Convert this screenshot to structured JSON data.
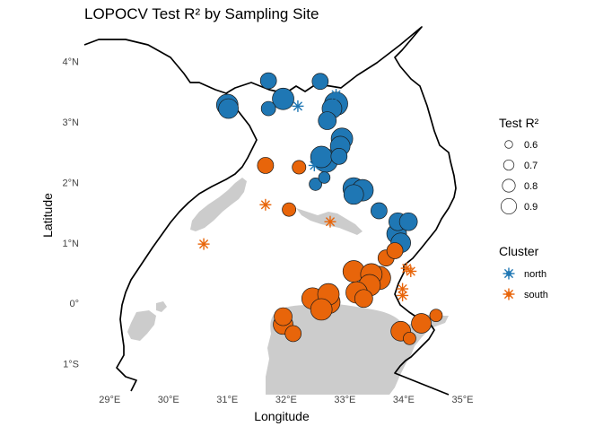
{
  "title": "LOPOCV Test R² by Sampling Site",
  "xlabel": "Longitude",
  "ylabel": "Latitude",
  "colors": {
    "north": "#1f77b4",
    "south": "#e8650a",
    "water": "#cccccc",
    "border": "#000000",
    "text": "#444444"
  },
  "chart_data": {
    "type": "scatter",
    "xlim": [
      28.6,
      35.1
    ],
    "ylim": [
      -1.45,
      4.6
    ],
    "x_ticks": [
      {
        "value": 29,
        "label": "29°E"
      },
      {
        "value": 30,
        "label": "30°E"
      },
      {
        "value": 31,
        "label": "31°E"
      },
      {
        "value": 32,
        "label": "32°E"
      },
      {
        "value": 33,
        "label": "33°E"
      },
      {
        "value": 34,
        "label": "34°E"
      },
      {
        "value": 35,
        "label": "35°E"
      }
    ],
    "y_ticks": [
      {
        "value": -1,
        "label": "1°S"
      },
      {
        "value": 0,
        "label": "0°"
      },
      {
        "value": 1,
        "label": "1°N"
      },
      {
        "value": 2,
        "label": "2°N"
      },
      {
        "value": 3,
        "label": "3°N"
      },
      {
        "value": 4,
        "label": "4°N"
      }
    ],
    "legend_size": {
      "title": "Test R²",
      "items": [
        {
          "value": 0.6,
          "label": "0.6"
        },
        {
          "value": 0.7,
          "label": "0.7"
        },
        {
          "value": 0.8,
          "label": "0.8"
        },
        {
          "value": 0.9,
          "label": "0.9"
        }
      ]
    },
    "legend_cluster": {
      "title": "Cluster",
      "items": [
        {
          "key": "north",
          "label": "north"
        },
        {
          "key": "south",
          "label": "south"
        }
      ]
    },
    "points": [
      {
        "lon": 31.7,
        "lat": 3.68,
        "r2": 0.75,
        "cluster": "north",
        "marker": "circle"
      },
      {
        "lon": 32.58,
        "lat": 3.67,
        "r2": 0.75,
        "cluster": "north",
        "marker": "circle"
      },
      {
        "lon": 31.0,
        "lat": 3.28,
        "r2": 0.9,
        "cluster": "north",
        "marker": "circle"
      },
      {
        "lon": 31.02,
        "lat": 3.22,
        "r2": 0.85,
        "cluster": "north",
        "marker": "circle"
      },
      {
        "lon": 31.7,
        "lat": 3.22,
        "r2": 0.7,
        "cluster": "north",
        "marker": "circle"
      },
      {
        "lon": 31.95,
        "lat": 3.38,
        "r2": 0.9,
        "cluster": "north",
        "marker": "circle"
      },
      {
        "lon": 32.2,
        "lat": 3.26,
        "r2": 0.52,
        "cluster": "north",
        "marker": "star"
      },
      {
        "lon": 32.85,
        "lat": 3.45,
        "r2": 0.52,
        "cluster": "north",
        "marker": "star"
      },
      {
        "lon": 32.85,
        "lat": 3.3,
        "r2": 0.95,
        "cluster": "north",
        "marker": "circle"
      },
      {
        "lon": 32.78,
        "lat": 3.22,
        "r2": 0.85,
        "cluster": "north",
        "marker": "circle"
      },
      {
        "lon": 32.7,
        "lat": 3.02,
        "r2": 0.8,
        "cluster": "north",
        "marker": "circle"
      },
      {
        "lon": 32.95,
        "lat": 2.72,
        "r2": 0.9,
        "cluster": "north",
        "marker": "circle"
      },
      {
        "lon": 32.92,
        "lat": 2.6,
        "r2": 0.85,
        "cluster": "north",
        "marker": "circle"
      },
      {
        "lon": 32.6,
        "lat": 2.42,
        "r2": 0.9,
        "cluster": "north",
        "marker": "circle"
      },
      {
        "lon": 32.68,
        "lat": 2.36,
        "r2": 0.95,
        "cluster": "north",
        "marker": "circle"
      },
      {
        "lon": 32.9,
        "lat": 2.43,
        "r2": 0.75,
        "cluster": "north",
        "marker": "circle"
      },
      {
        "lon": 32.48,
        "lat": 2.28,
        "r2": 0.52,
        "cluster": "north",
        "marker": "star"
      },
      {
        "lon": 32.65,
        "lat": 2.08,
        "r2": 0.62,
        "cluster": "north",
        "marker": "circle"
      },
      {
        "lon": 32.5,
        "lat": 1.97,
        "r2": 0.65,
        "cluster": "north",
        "marker": "circle"
      },
      {
        "lon": 33.15,
        "lat": 1.9,
        "r2": 0.9,
        "cluster": "north",
        "marker": "circle"
      },
      {
        "lon": 33.3,
        "lat": 1.87,
        "r2": 0.9,
        "cluster": "north",
        "marker": "circle"
      },
      {
        "lon": 33.15,
        "lat": 1.8,
        "r2": 0.85,
        "cluster": "north",
        "marker": "circle"
      },
      {
        "lon": 33.58,
        "lat": 1.53,
        "r2": 0.75,
        "cluster": "north",
        "marker": "circle"
      },
      {
        "lon": 33.9,
        "lat": 1.35,
        "r2": 0.8,
        "cluster": "north",
        "marker": "circle"
      },
      {
        "lon": 34.08,
        "lat": 1.35,
        "r2": 0.8,
        "cluster": "north",
        "marker": "circle"
      },
      {
        "lon": 33.88,
        "lat": 1.15,
        "r2": 0.85,
        "cluster": "north",
        "marker": "circle"
      },
      {
        "lon": 33.95,
        "lat": 1.0,
        "r2": 0.85,
        "cluster": "north",
        "marker": "circle"
      },
      {
        "lon": 31.65,
        "lat": 2.28,
        "r2": 0.75,
        "cluster": "south",
        "marker": "circle"
      },
      {
        "lon": 32.22,
        "lat": 2.25,
        "r2": 0.68,
        "cluster": "south",
        "marker": "circle"
      },
      {
        "lon": 31.65,
        "lat": 1.63,
        "r2": 0.52,
        "cluster": "south",
        "marker": "star"
      },
      {
        "lon": 32.05,
        "lat": 1.55,
        "r2": 0.68,
        "cluster": "south",
        "marker": "circle"
      },
      {
        "lon": 32.75,
        "lat": 1.35,
        "r2": 0.52,
        "cluster": "south",
        "marker": "star"
      },
      {
        "lon": 30.6,
        "lat": 0.98,
        "r2": 0.52,
        "cluster": "south",
        "marker": "star"
      },
      {
        "lon": 33.7,
        "lat": 0.75,
        "r2": 0.75,
        "cluster": "south",
        "marker": "circle"
      },
      {
        "lon": 33.85,
        "lat": 0.87,
        "r2": 0.75,
        "cluster": "south",
        "marker": "circle"
      },
      {
        "lon": 34.05,
        "lat": 0.58,
        "r2": 0.52,
        "cluster": "south",
        "marker": "star"
      },
      {
        "lon": 34.12,
        "lat": 0.53,
        "r2": 0.52,
        "cluster": "south",
        "marker": "star"
      },
      {
        "lon": 33.15,
        "lat": 0.53,
        "r2": 0.9,
        "cluster": "south",
        "marker": "circle"
      },
      {
        "lon": 33.45,
        "lat": 0.48,
        "r2": 0.9,
        "cluster": "south",
        "marker": "circle"
      },
      {
        "lon": 33.58,
        "lat": 0.42,
        "r2": 0.95,
        "cluster": "south",
        "marker": "circle"
      },
      {
        "lon": 33.42,
        "lat": 0.3,
        "r2": 0.9,
        "cluster": "south",
        "marker": "circle"
      },
      {
        "lon": 33.2,
        "lat": 0.18,
        "r2": 0.9,
        "cluster": "south",
        "marker": "circle"
      },
      {
        "lon": 33.32,
        "lat": 0.08,
        "r2": 0.8,
        "cluster": "south",
        "marker": "circle"
      },
      {
        "lon": 33.98,
        "lat": 0.24,
        "r2": 0.52,
        "cluster": "south",
        "marker": "star"
      },
      {
        "lon": 33.98,
        "lat": 0.13,
        "r2": 0.52,
        "cluster": "south",
        "marker": "star"
      },
      {
        "lon": 32.45,
        "lat": 0.08,
        "r2": 0.9,
        "cluster": "south",
        "marker": "circle"
      },
      {
        "lon": 32.72,
        "lat": 0.15,
        "r2": 0.9,
        "cluster": "south",
        "marker": "circle"
      },
      {
        "lon": 32.72,
        "lat": 0.02,
        "r2": 0.95,
        "cluster": "south",
        "marker": "circle"
      },
      {
        "lon": 32.6,
        "lat": -0.1,
        "r2": 0.9,
        "cluster": "south",
        "marker": "circle"
      },
      {
        "lon": 31.95,
        "lat": -0.22,
        "r2": 0.8,
        "cluster": "south",
        "marker": "circle"
      },
      {
        "lon": 31.95,
        "lat": -0.35,
        "r2": 0.85,
        "cluster": "south",
        "marker": "circle"
      },
      {
        "lon": 32.12,
        "lat": -0.5,
        "r2": 0.75,
        "cluster": "south",
        "marker": "circle"
      },
      {
        "lon": 33.95,
        "lat": -0.46,
        "r2": 0.85,
        "cluster": "south",
        "marker": "circle"
      },
      {
        "lon": 34.1,
        "lat": -0.58,
        "r2": 0.65,
        "cluster": "south",
        "marker": "circle"
      },
      {
        "lon": 34.3,
        "lat": -0.33,
        "r2": 0.85,
        "cluster": "south",
        "marker": "circle"
      },
      {
        "lon": 34.55,
        "lat": -0.2,
        "r2": 0.65,
        "cluster": "south",
        "marker": "circle"
      }
    ]
  }
}
